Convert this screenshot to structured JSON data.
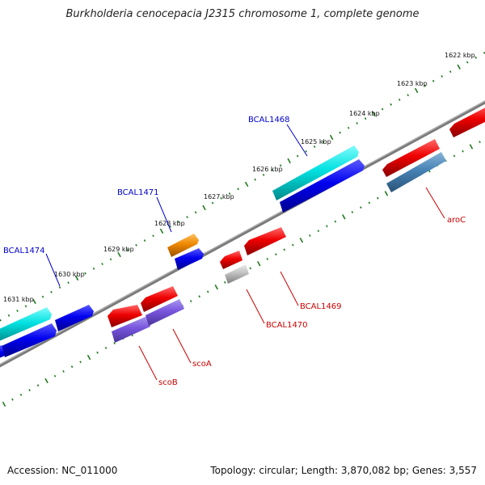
{
  "title": "Burkholderia cenocepacia J2315 chromosome 1, complete genome",
  "accession": "Accession: NC_011000",
  "summary": "Topology: circular; Length: 3,870,082 bp; Genes: 3,557",
  "colors": {
    "backbone": "#7a7a7a",
    "tick": "#1f7a1f",
    "label_plus": "#0000cc",
    "label_minus": "#cc0000"
  },
  "kbp_labels": [
    "1622 kbp",
    "1623 kbp",
    "1624 kbp",
    "1625 kbp",
    "1626 kbp",
    "1627 kbp",
    "1628 kbp",
    "1629 kbp",
    "1630 kbp",
    "1631 kbp"
  ],
  "gene_labels": {
    "plus": [
      "BCAL1474",
      "BCAL1471",
      "BCAL1468"
    ],
    "minus": [
      "scoB",
      "scoA",
      "BCAL1470",
      "BCAL1469",
      "aroC"
    ]
  },
  "feature_colors": [
    "#00dede",
    "#0000ee",
    "#ee0000",
    "#ee8800",
    "#7755dd",
    "#c0c0c0",
    "#4682b4"
  ]
}
